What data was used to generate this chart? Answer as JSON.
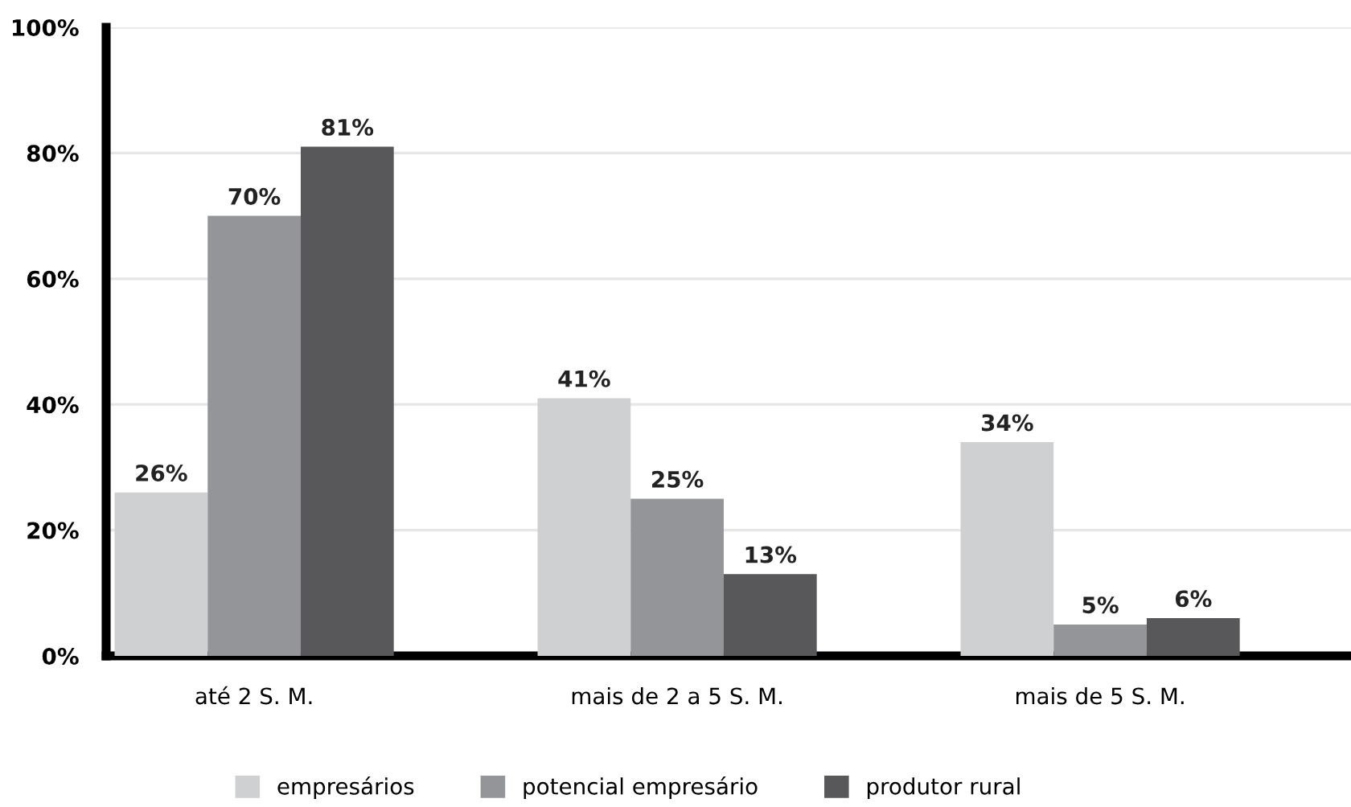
{
  "chart_data": {
    "type": "bar",
    "categories": [
      "até 2 S. M.",
      "mais de 2 a 5 S. M.",
      "mais de 5 S. M."
    ],
    "series": [
      {
        "name": "empresários",
        "color": "#cfd0d2",
        "values": [
          26,
          41,
          34
        ],
        "value_labels": [
          "26%",
          "41%",
          "34%"
        ]
      },
      {
        "name": "potencial empresário",
        "color": "#939598",
        "values": [
          70,
          25,
          5
        ],
        "value_labels": [
          "70%",
          "25%",
          "5%"
        ]
      },
      {
        "name": "produtor rural",
        "color": "#58585a",
        "values": [
          81,
          13,
          6
        ],
        "value_labels": [
          "81%",
          "13%",
          "6%"
        ]
      }
    ],
    "ylim": [
      0,
      100
    ],
    "yticks": [
      {
        "value": 0,
        "label": "0%"
      },
      {
        "value": 20,
        "label": "20%"
      },
      {
        "value": 40,
        "label": "40%"
      },
      {
        "value": 60,
        "label": "60%"
      },
      {
        "value": 80,
        "label": "80%"
      },
      {
        "value": 100,
        "label": "100%"
      }
    ],
    "grid": "y",
    "legend": "bottom"
  }
}
